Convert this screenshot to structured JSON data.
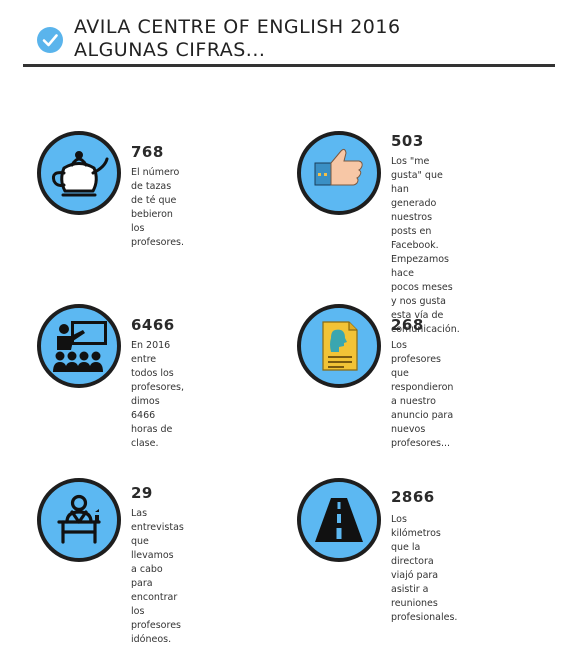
{
  "header": {
    "check_icon": "check-circle-icon",
    "title_line1": "AVILA CENTRE OF ENGLISH 2016",
    "title_line2": "ALGUNAS CIFRAS..."
  },
  "colors": {
    "accent": "#5cb8f2",
    "rule": "#333333",
    "check": "#5ab4ec"
  },
  "stats": [
    {
      "icon": "teapot-icon",
      "number": "768",
      "desc": [
        "El número de tazas de té que",
        "bebieron los profesores."
      ]
    },
    {
      "icon": "thumbs-up-icon",
      "number": "503",
      "desc": [
        "Los \"me gusta\" que han",
        "generado nuestros posts en",
        "Facebook. Empezamos hace",
        "pocos meses y nos gusta",
        "esta vía de comunicación."
      ]
    },
    {
      "icon": "classroom-icon",
      "number": "6466",
      "desc": [
        "En 2016 entre todos los",
        "profesores, dimos 6466",
        "horas de clase."
      ]
    },
    {
      "icon": "document-profile-icon",
      "number": "268",
      "desc": [
        "Los profesores que",
        "respondieron a nuestro",
        "anuncio para nuevos",
        "profesores..."
      ]
    },
    {
      "icon": "interview-desk-icon",
      "number": "29",
      "desc": [
        "Las entrevistas que llevamos",
        "a cabo para encontrar los",
        "profesores idóneos."
      ]
    },
    {
      "icon": "road-icon",
      "number": "2866",
      "desc": [
        "Los kilómetros que la",
        "directora viajó para asistir a",
        "reuniones profesionales."
      ]
    }
  ]
}
